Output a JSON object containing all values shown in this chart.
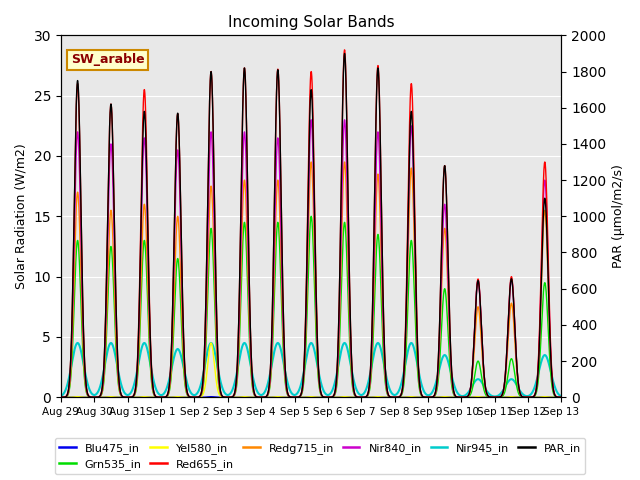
{
  "title": "Incoming Solar Bands",
  "ylabel_left": "Solar Radiation (W/m2)",
  "ylabel_right": "PAR (μmol/m2/s)",
  "ylim_left": [
    0,
    30
  ],
  "ylim_right": [
    0,
    2000
  ],
  "annotation": "SW_arable",
  "series": {
    "Blu475_in": {
      "color": "#0000ee",
      "lw": 1.0,
      "sigma": 0.1
    },
    "Grn535_in": {
      "color": "#00dd00",
      "lw": 1.0,
      "sigma": 0.1
    },
    "Yel580_in": {
      "color": "#ffff00",
      "lw": 1.0,
      "sigma": 0.1
    },
    "Red655_in": {
      "color": "#ff0000",
      "lw": 1.0,
      "sigma": 0.1
    },
    "Redg715_in": {
      "color": "#ff8800",
      "lw": 1.0,
      "sigma": 0.1
    },
    "Nir840_in": {
      "color": "#cc00cc",
      "lw": 1.0,
      "sigma": 0.1
    },
    "Nir945_in": {
      "color": "#00cccc",
      "lw": 1.5,
      "sigma": 0.18
    },
    "PAR_in": {
      "color": "#000000",
      "lw": 1.0,
      "sigma": 0.1,
      "secondary": true
    }
  },
  "day_peaks": {
    "Aug 29": {
      "Red655_in": 26.0,
      "Nir840_in": 22.0,
      "Redg715_in": 17.0,
      "Grn535_in": 13.0,
      "Blu475_in": 0.05,
      "Yel580_in": 0.05,
      "Nir945_in": 4.5,
      "PAR_in": 1750
    },
    "Aug 30": {
      "Red655_in": 24.3,
      "Nir840_in": 21.0,
      "Redg715_in": 15.5,
      "Grn535_in": 12.5,
      "Blu475_in": 0.05,
      "Yel580_in": 0.05,
      "Nir945_in": 4.5,
      "PAR_in": 1620
    },
    "Aug 31": {
      "Red655_in": 25.5,
      "Nir840_in": 21.5,
      "Redg715_in": 16.0,
      "Grn535_in": 13.0,
      "Blu475_in": 0.05,
      "Yel580_in": 0.05,
      "Nir945_in": 4.5,
      "PAR_in": 1580
    },
    "Sep 1": {
      "Red655_in": 23.5,
      "Nir840_in": 20.5,
      "Redg715_in": 15.0,
      "Grn535_in": 11.5,
      "Blu475_in": 0.05,
      "Yel580_in": 0.05,
      "Nir945_in": 4.0,
      "PAR_in": 1570
    },
    "Sep 2": {
      "Red655_in": 27.0,
      "Nir840_in": 22.0,
      "Redg715_in": 17.5,
      "Grn535_in": 14.0,
      "Blu475_in": 0.05,
      "Yel580_in": 4.5,
      "Nir945_in": 4.5,
      "PAR_in": 1800
    },
    "Sep 3": {
      "Red655_in": 27.3,
      "Nir840_in": 22.0,
      "Redg715_in": 18.0,
      "Grn535_in": 14.5,
      "Blu475_in": 0.05,
      "Yel580_in": 0.05,
      "Nir945_in": 4.5,
      "PAR_in": 1820
    },
    "Sep 4": {
      "Red655_in": 27.2,
      "Nir840_in": 21.5,
      "Redg715_in": 18.0,
      "Grn535_in": 14.5,
      "Blu475_in": 0.05,
      "Yel580_in": 0.05,
      "Nir945_in": 4.5,
      "PAR_in": 1810
    },
    "Sep 5": {
      "Red655_in": 27.0,
      "Nir840_in": 23.0,
      "Redg715_in": 19.5,
      "Grn535_in": 15.0,
      "Blu475_in": 0.05,
      "Yel580_in": 0.05,
      "Nir945_in": 4.5,
      "PAR_in": 1700
    },
    "Sep 6": {
      "Red655_in": 28.8,
      "Nir840_in": 23.0,
      "Redg715_in": 19.5,
      "Grn535_in": 14.5,
      "Blu475_in": 0.05,
      "Yel580_in": 0.05,
      "Nir945_in": 4.5,
      "PAR_in": 1900
    },
    "Sep 7": {
      "Red655_in": 27.5,
      "Nir840_in": 22.0,
      "Redg715_in": 18.5,
      "Grn535_in": 13.5,
      "Blu475_in": 0.05,
      "Yel580_in": 0.05,
      "Nir945_in": 4.5,
      "PAR_in": 1820
    },
    "Sep 8": {
      "Red655_in": 26.0,
      "Nir840_in": 22.5,
      "Redg715_in": 19.0,
      "Grn535_in": 13.0,
      "Blu475_in": 0.05,
      "Yel580_in": 0.05,
      "Nir945_in": 4.5,
      "PAR_in": 1580
    },
    "Sep 9": {
      "Red655_in": 19.2,
      "Nir840_in": 16.0,
      "Redg715_in": 14.0,
      "Grn535_in": 9.0,
      "Blu475_in": 0.05,
      "Yel580_in": 0.05,
      "Nir945_in": 3.5,
      "PAR_in": 1280
    },
    "Sep 10": {
      "Red655_in": 9.8,
      "Nir840_in": 9.7,
      "Redg715_in": 7.5,
      "Grn535_in": 3.0,
      "Blu475_in": 0.05,
      "Yel580_in": 0.05,
      "Nir945_in": 1.5,
      "PAR_in": 645
    },
    "Sep 11": {
      "Red655_in": 10.0,
      "Nir840_in": 9.8,
      "Redg715_in": 7.8,
      "Grn535_in": 3.2,
      "Blu475_in": 0.05,
      "Yel580_in": 0.05,
      "Nir945_in": 1.5,
      "PAR_in": 655
    },
    "Sep 12": {
      "Red655_in": 19.5,
      "Nir840_in": 18.0,
      "Redg715_in": 15.5,
      "Grn535_in": 9.5,
      "Blu475_in": 0.05,
      "Yel580_in": 0.05,
      "Nir945_in": 3.5,
      "PAR_in": 1100
    }
  },
  "xtick_labels": [
    "Aug 29",
    "Aug 30",
    "Aug 31",
    "Sep 1",
    "Sep 2",
    "Sep 3",
    "Sep 4",
    "Sep 5",
    "Sep 6",
    "Sep 7",
    "Sep 8",
    "Sep 9",
    "Sep 10",
    "Sep 11",
    "Sep 12",
    "Sep 13"
  ],
  "bg_color": "#e8e8e8",
  "ncol": 6
}
